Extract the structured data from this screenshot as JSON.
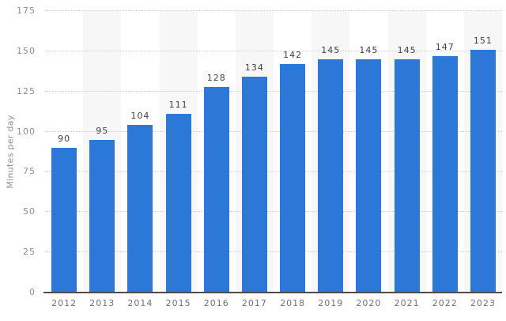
{
  "chart_data": {
    "type": "bar",
    "categories": [
      "2012",
      "2013",
      "2014",
      "2015",
      "2016",
      "2017",
      "2018",
      "2019",
      "2020",
      "2021",
      "2022",
      "2023"
    ],
    "values": [
      90,
      95,
      104,
      111,
      128,
      134,
      142,
      145,
      145,
      145,
      147,
      151
    ],
    "title": "",
    "xlabel": "",
    "ylabel": "Minutes per day",
    "ylim": [
      0,
      175
    ],
    "yticks": [
      0,
      25,
      50,
      75,
      100,
      125,
      150,
      175
    ],
    "grid": "horizontal-dotted",
    "legend_position": "none",
    "value_labels_shown": true,
    "alternating_column_stripes": true,
    "colors": {
      "bar": "#2b78d8",
      "stripe": "#f7f7f7",
      "gridline": "#cfcfcf",
      "baseline": "#4d4d4d",
      "value_label": "#3f3f3f",
      "y_tick_label": "#8f8f8f",
      "x_tick_label": "#707070",
      "y_axis_title": "#8f8f8f",
      "background": "#ffffff"
    }
  }
}
